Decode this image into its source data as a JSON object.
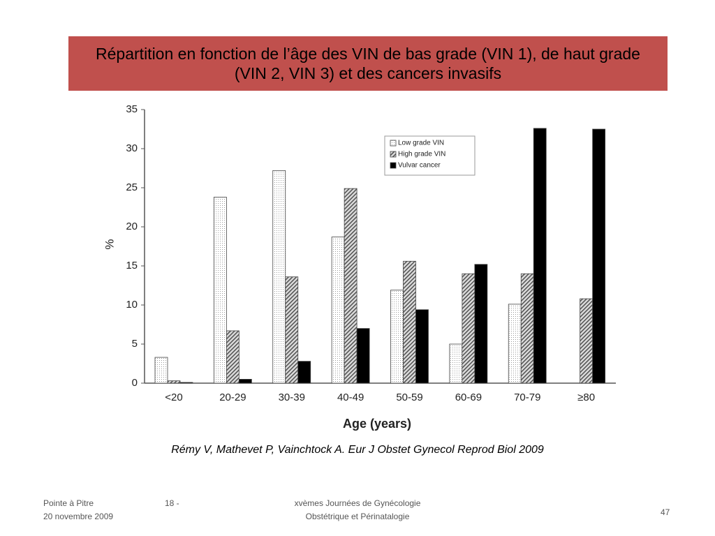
{
  "slide_title": "Répartition en fonction de l’âge des VIN de bas grade (VIN 1), de haut grade (VIN 2, VIN 3) et des cancers invasifs",
  "chart_data": {
    "type": "bar",
    "x_label": "Age (years)",
    "y_label": "%",
    "categories": [
      "<20",
      "20-29",
      "30-39",
      "40-49",
      "50-59",
      "60-69",
      "70-79",
      "≥80"
    ],
    "series": [
      {
        "name": "Low grade VIN",
        "color": "#f2f2f2",
        "pattern": "dots",
        "values": [
          3.3,
          23.8,
          27.2,
          18.7,
          11.9,
          5.0,
          10.1,
          0
        ]
      },
      {
        "name": "High grade VIN",
        "color": "#777777",
        "pattern": "hatch",
        "values": [
          0.3,
          6.7,
          13.6,
          24.9,
          15.6,
          14.0,
          14.0,
          10.8
        ]
      },
      {
        "name": "Vulvar cancer",
        "color": "#000000",
        "pattern": "solid",
        "values": [
          0.1,
          0.5,
          2.8,
          7.0,
          9.4,
          15.2,
          32.6,
          32.5
        ]
      }
    ],
    "ylim": [
      0,
      35
    ],
    "yticks": [
      0,
      5,
      10,
      15,
      20,
      25,
      30,
      35
    ],
    "grid": false,
    "legend": "top-right"
  },
  "citation": "Rémy V, Mathevet P, Vainchtock A. Eur J Obstet Gynecol Reprod Biol 2009",
  "footer": {
    "place": "Pointe à Pitre",
    "date": "20 novembre 2009",
    "page_ref": "18 -",
    "event_line1": "xvèmes Journées de Gynécologie",
    "event_line2": "Obstétrique et Périnatalogie",
    "slide_number": "47"
  }
}
